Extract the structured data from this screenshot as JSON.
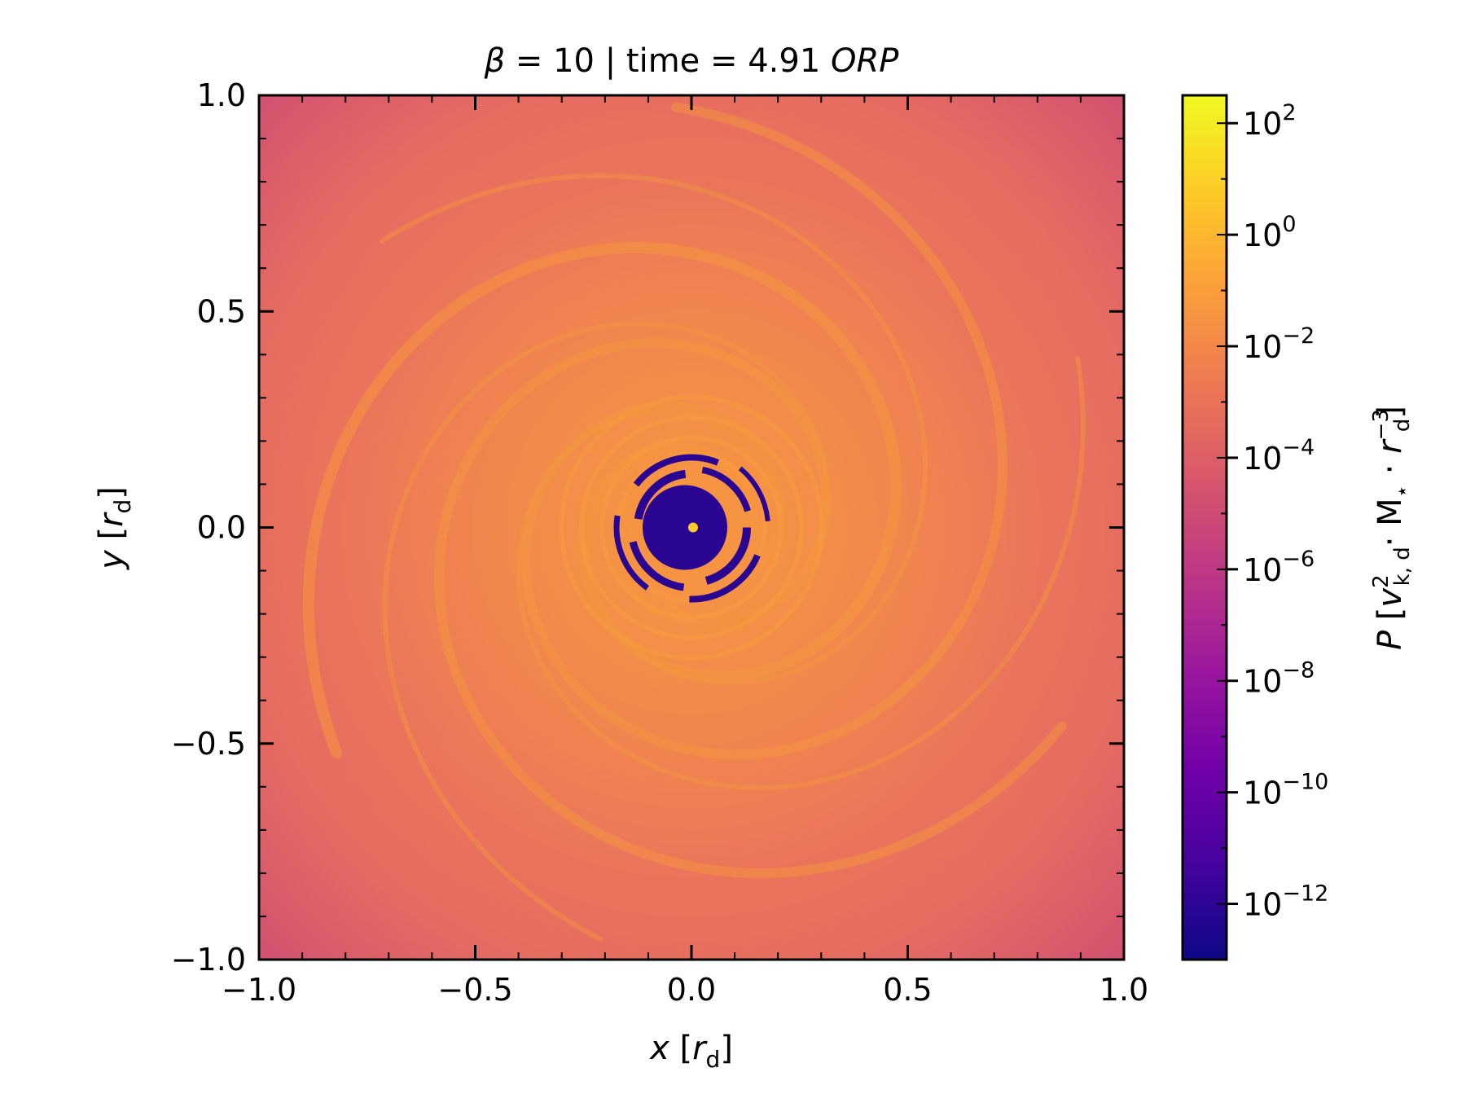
{
  "chart_data": {
    "type": "heatmap",
    "title": {
      "beta_symbol": "β",
      "beta_text": " = 10 | time = 4.91 ",
      "unit": "ORP"
    },
    "xlabel": {
      "var": "x",
      "open": " [",
      "sym": "r",
      "sub": "d",
      "close": "]"
    },
    "ylabel": {
      "var": "y",
      "open": " [",
      "sym": "r",
      "sub": "d",
      "close": "]"
    },
    "xlim": [
      -1.0,
      1.0
    ],
    "ylim": [
      -1.0,
      1.0
    ],
    "x_ticks": [
      {
        "value": -1.0,
        "label": "−1.0"
      },
      {
        "value": -0.5,
        "label": "−0.5"
      },
      {
        "value": 0.0,
        "label": "0.0"
      },
      {
        "value": 0.5,
        "label": "0.5"
      },
      {
        "value": 1.0,
        "label": "1.0"
      }
    ],
    "y_ticks": [
      {
        "value": -1.0,
        "label": "−1.0"
      },
      {
        "value": -0.5,
        "label": "−0.5"
      },
      {
        "value": 0.0,
        "label": "0.0"
      },
      {
        "value": 0.5,
        "label": "0.5"
      },
      {
        "value": 1.0,
        "label": "1.0"
      }
    ],
    "minor_tick_step": 0.1,
    "colorbar": {
      "label": {
        "var": "P",
        "open": " [",
        "v": "v",
        "v_sup": "2",
        "v_sub": "k, d",
        "dot1": "· M",
        "m_sub": "⋆",
        "dot2": " · ",
        "r": "r",
        "r_sup": "−3",
        "r_sub": "d",
        "close": "]"
      },
      "scale": "log",
      "range_exp": [
        -13,
        2.5
      ],
      "ticks": [
        {
          "exp": 2,
          "base": "10",
          "sup": "2"
        },
        {
          "exp": 0,
          "base": "10",
          "sup": "0"
        },
        {
          "exp": -2,
          "base": "10",
          "sup": "−2"
        },
        {
          "exp": -4,
          "base": "10",
          "sup": "−4"
        },
        {
          "exp": -6,
          "base": "10",
          "sup": "−6"
        },
        {
          "exp": -8,
          "base": "10",
          "sup": "−8"
        },
        {
          "exp": -10,
          "base": "10",
          "sup": "−10"
        },
        {
          "exp": -12,
          "base": "10",
          "sup": "−12"
        }
      ],
      "colormap": "plasma",
      "colors": [
        "#0d0887",
        "#46039f",
        "#7201a8",
        "#9c179e",
        "#bd3786",
        "#d8576b",
        "#ed7953",
        "#fb9f3a",
        "#fdca26",
        "#f0f921"
      ]
    },
    "field": {
      "background": "#ee7c58",
      "corner_color": "#d4566e",
      "spiral_color": "#f5963e",
      "core_color": "#2a0592",
      "center_color": "#fdca26"
    }
  }
}
